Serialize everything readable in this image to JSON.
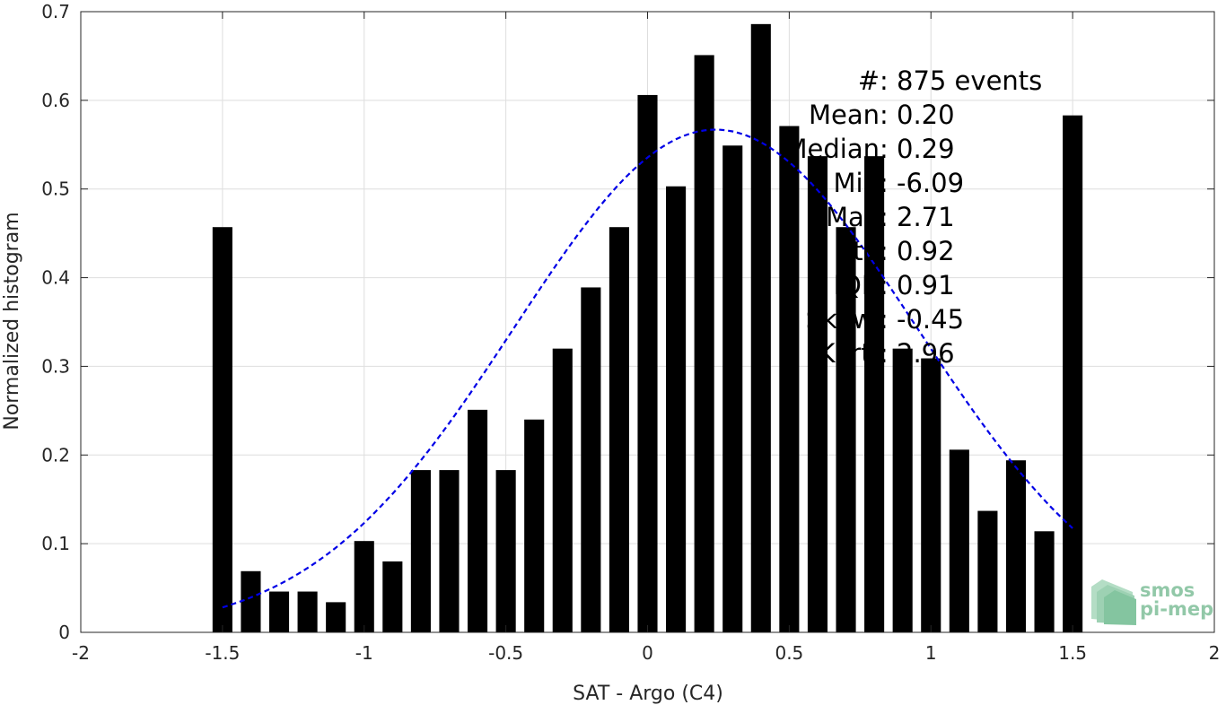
{
  "chart_data": {
    "type": "bar",
    "xlabel": "SAT - Argo (C4)",
    "ylabel": "Normalized histogram",
    "xlim": [
      -2,
      2
    ],
    "ylim": [
      0,
      0.7
    ],
    "xticks": [
      -2,
      -1.5,
      -1,
      -0.5,
      0,
      0.5,
      1,
      1.5,
      2
    ],
    "xtick_labels": [
      "-2",
      "-1.5",
      "-1",
      "-0.5",
      "0",
      "0.5",
      "1",
      "1.5",
      "2"
    ],
    "yticks": [
      0,
      0.1,
      0.2,
      0.3,
      0.4,
      0.5,
      0.6,
      0.7
    ],
    "ytick_labels": [
      "0",
      "0.1",
      "0.2",
      "0.3",
      "0.4",
      "0.5",
      "0.6",
      "0.7"
    ],
    "grid": true,
    "bar_color": "#000000",
    "bin_width": 0.1,
    "x": [
      -1.5,
      -1.4,
      -1.3,
      -1.2,
      -1.1,
      -1.0,
      -0.9,
      -0.8,
      -0.7,
      -0.6,
      -0.5,
      -0.4,
      -0.3,
      -0.2,
      -0.1,
      0.0,
      0.1,
      0.2,
      0.3,
      0.4,
      0.5,
      0.6,
      0.7,
      0.8,
      0.9,
      1.0,
      1.1,
      1.2,
      1.3,
      1.4,
      1.5
    ],
    "values": [
      0.457,
      0.069,
      0.046,
      0.046,
      0.034,
      0.103,
      0.08,
      0.183,
      0.183,
      0.251,
      0.183,
      0.24,
      0.32,
      0.389,
      0.457,
      0.606,
      0.503,
      0.651,
      0.549,
      0.686,
      0.571,
      0.537,
      0.457,
      0.537,
      0.32,
      0.309,
      0.206,
      0.137,
      0.194,
      0.114,
      0.583
    ],
    "fit": {
      "type": "gaussian",
      "style": "dashed",
      "color": "#0000e6",
      "mean": 0.24,
      "std": 0.71,
      "peak": 0.567,
      "x_range": [
        -1.5,
        1.5
      ]
    },
    "annotations": [
      {
        "label": "#  ",
        "value": ": 875 events"
      },
      {
        "label": "Mean ",
        "value": ": 0.20"
      },
      {
        "label": "Median ",
        "value": ": 0.29"
      },
      {
        "label": "Min ",
        "value": ": -6.09"
      },
      {
        "label": "Max ",
        "value": ": 2.71"
      },
      {
        "label": "Std ",
        "value": ": 0.92"
      },
      {
        "label": "IQR ",
        "value": ": 0.91"
      },
      {
        "label": "Skew. ",
        "value": ": -0.45"
      },
      {
        "label": "Kurt. ",
        "value": ": 2.96"
      }
    ]
  },
  "logo": {
    "line1": "smos",
    "line2": "pi-mep",
    "color": "#7fbf9a"
  }
}
